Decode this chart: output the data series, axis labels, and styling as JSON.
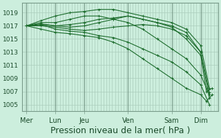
{
  "bg_color": "#cceedd",
  "grid_color": "#aaccbb",
  "line_color": "#1a6b2a",
  "marker_color": "#1a6b2a",
  "xlabel": "Pression niveau de la mer( hPa )",
  "xlabel_fontsize": 9,
  "yticks": [
    1005,
    1007,
    1009,
    1011,
    1013,
    1015,
    1017,
    1019
  ],
  "ylim": [
    1004,
    1020.5
  ],
  "xtick_labels": [
    "Mer",
    "Lun",
    "Jeu",
    "Ven",
    "Sam",
    "Dim"
  ],
  "xtick_positions": [
    0,
    1,
    2,
    3.5,
    5,
    6
  ],
  "xlim": [
    -0.15,
    6.6
  ],
  "day_lines": [
    0,
    1,
    2,
    3.5,
    5,
    6
  ],
  "series": [
    {
      "x": [
        0,
        0.5,
        1.0,
        1.5,
        2.0,
        2.5,
        3.0,
        3.5,
        4.0,
        4.5,
        5.0,
        5.5,
        6.0,
        6.3
      ],
      "y": [
        1017,
        1017.2,
        1016.5,
        1016.2,
        1016.0,
        1015.5,
        1015.2,
        1014.5,
        1013.5,
        1012.5,
        1011.5,
        1010.0,
        1008.0,
        1005.0
      ]
    },
    {
      "x": [
        0,
        0.5,
        1.0,
        1.5,
        2.0,
        2.5,
        3.0,
        3.5,
        4.0,
        4.5,
        5.0,
        5.5,
        6.0,
        6.3
      ],
      "y": [
        1017,
        1017.5,
        1017.5,
        1018.0,
        1018.5,
        1018.5,
        1018.0,
        1017.5,
        1016.5,
        1015.0,
        1013.5,
        1012.0,
        1009.5,
        1006.5
      ]
    },
    {
      "x": [
        0,
        0.5,
        1.0,
        1.5,
        2.0,
        2.5,
        3.0,
        3.5,
        4.0,
        4.5,
        5.0,
        5.5,
        6.0,
        6.3
      ],
      "y": [
        1017,
        1017.8,
        1018.5,
        1019.0,
        1019.2,
        1019.5,
        1019.5,
        1019.0,
        1018.5,
        1018.0,
        1017.5,
        1016.5,
        1014.0,
        1007.5
      ]
    },
    {
      "x": [
        0,
        0.5,
        1.0,
        1.5,
        2.0,
        2.5,
        3.0,
        3.5,
        4.0,
        4.5,
        5.0,
        5.5,
        6.0,
        6.3
      ],
      "y": [
        1017,
        1017.3,
        1017.0,
        1017.2,
        1017.5,
        1018.0,
        1018.2,
        1018.5,
        1018.0,
        1017.5,
        1017.0,
        1016.0,
        1013.0,
        1006.0
      ]
    },
    {
      "x": [
        0,
        0.5,
        1.0,
        1.5,
        2.0,
        2.5,
        3.0,
        3.5,
        4.0,
        4.5,
        5.0,
        5.5,
        6.0,
        6.2,
        6.4
      ],
      "y": [
        1017,
        1016.5,
        1016.0,
        1015.8,
        1015.5,
        1015.2,
        1014.5,
        1013.5,
        1012.0,
        1010.5,
        1009.0,
        1007.5,
        1006.5,
        1005.5,
        1006.5
      ]
    },
    {
      "x": [
        0,
        0.5,
        1.0,
        1.5,
        2.0,
        2.5,
        3.0,
        3.5,
        4.0,
        4.5,
        5.0,
        5.5,
        6.0,
        6.2,
        6.4
      ],
      "y": [
        1017,
        1017.2,
        1017.0,
        1016.8,
        1017.0,
        1017.5,
        1018.0,
        1018.5,
        1018.0,
        1017.5,
        1016.8,
        1015.0,
        1012.5,
        1007.0,
        1007.5
      ]
    },
    {
      "x": [
        0,
        0.5,
        1.0,
        1.5,
        2.0,
        2.5,
        3.0,
        3.5,
        4.0,
        4.5,
        5.0,
        5.5,
        6.0,
        6.3
      ],
      "y": [
        1017,
        1017.0,
        1016.8,
        1016.5,
        1016.3,
        1016.5,
        1016.8,
        1017.0,
        1017.2,
        1017.0,
        1016.5,
        1015.5,
        1013.0,
        1006.8
      ]
    }
  ]
}
